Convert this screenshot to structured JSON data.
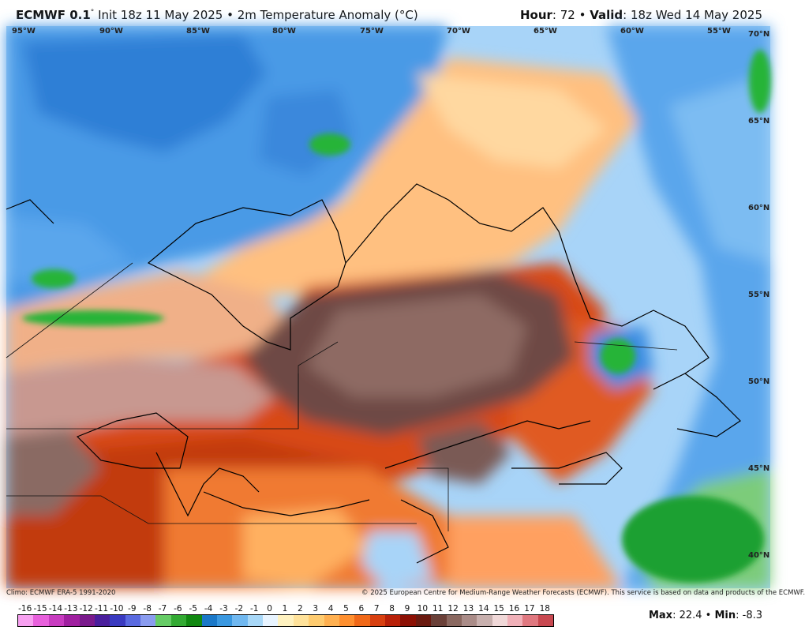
{
  "header": {
    "model": "ECMWF 0.1",
    "model_sup": "°",
    "init_text": "Init 18z 11 May 2025 • 2m Temperature Anomaly (°C)",
    "hour_label": "Hour",
    "hour_value": ": 72 • ",
    "valid_label": "Valid",
    "valid_value": ": 18z Wed 14 May 2025"
  },
  "longitudes": [
    "95°W",
    "90°W",
    "85°W",
    "80°W",
    "75°W",
    "70°W",
    "65°W",
    "60°W",
    "55°W"
  ],
  "latitudes": [
    "70°N",
    "65°N",
    "60°N",
    "55°N",
    "50°N",
    "45°N",
    "40°N"
  ],
  "footer": {
    "climo": "Climo: ECMWF ERA-5 1991-2020",
    "copyright": "© 2025 European Centre for Medium-Range Weather Forecasts (ECMWF). This service is based on data and products of the ECMWF."
  },
  "colorbar": {
    "labels": [
      "-16",
      "-15",
      "-14",
      "-13",
      "-12",
      "-11",
      "-10",
      "-9",
      "-8",
      "-7",
      "-6",
      "-5",
      "-4",
      "-3",
      "-2",
      "-1",
      "0",
      "1",
      "2",
      "3",
      "4",
      "5",
      "6",
      "7",
      "8",
      "9",
      "10",
      "11",
      "12",
      "13",
      "14",
      "15",
      "16",
      "17",
      "18"
    ],
    "colors": [
      "#f7a0f0",
      "#e860dc",
      "#c83cc0",
      "#a020a0",
      "#7a1a8c",
      "#4a1e9c",
      "#3a3ac0",
      "#5a6ae0",
      "#8a9cf0",
      "#66cc66",
      "#33aa33",
      "#118811",
      "#1a78c8",
      "#3a98e0",
      "#70b8f0",
      "#a8d8f8",
      "#e8f4ff",
      "#fff2c0",
      "#ffe29a",
      "#ffcc70",
      "#ffb050",
      "#ff9030",
      "#f06818",
      "#d84010",
      "#b82008",
      "#8c1004",
      "#6a1a10",
      "#6a4038",
      "#8a6860",
      "#aa8c88",
      "#c8b0ae",
      "#f0d8d8",
      "#f0b0b8",
      "#e07880",
      "#c84850"
    ]
  },
  "stats": {
    "max_label": "Max",
    "max_value": ": 22.4 • ",
    "min_label": "Min",
    "min_value": ": -8.3"
  },
  "colors": {
    "cold": "#3a8ce0",
    "cool": "#a8d4f8",
    "warm": "#ffb870",
    "hot": "#d23a0e",
    "extreme": "#6e4a44",
    "ocean_green": "#28b438"
  }
}
